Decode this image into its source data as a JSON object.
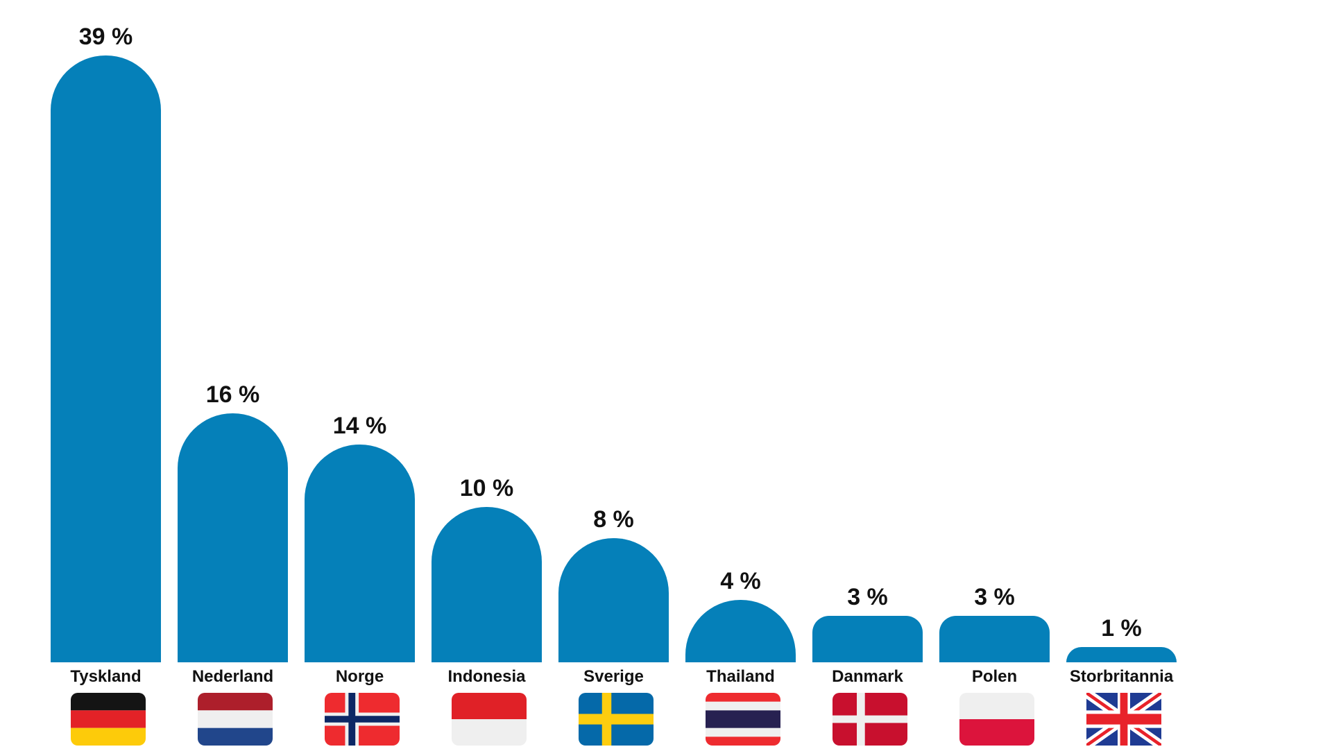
{
  "chart_data": {
    "type": "bar",
    "title": "",
    "xlabel": "",
    "ylabel": "",
    "ylim": [
      0,
      39
    ],
    "grid": false,
    "legend": null,
    "categories": [
      "Tyskland",
      "Nederland",
      "Norge",
      "Indonesia",
      "Sverige",
      "Thailand",
      "Danmark",
      "Polen",
      "Storbritannia"
    ],
    "values": [
      39,
      16,
      14,
      10,
      8,
      4,
      3,
      3,
      1
    ],
    "value_labels": [
      "39 %",
      "16 %",
      "14 %",
      "10 %",
      "8 %",
      "4 %",
      "3 %",
      "3 %",
      "1 %"
    ],
    "bar_color": "#0580b9",
    "flags": [
      "germany-flag",
      "netherlands-flag",
      "norway-flag",
      "indonesia-flag",
      "sweden-flag",
      "thailand-flag",
      "denmark-flag",
      "poland-flag",
      "uk-flag"
    ]
  }
}
